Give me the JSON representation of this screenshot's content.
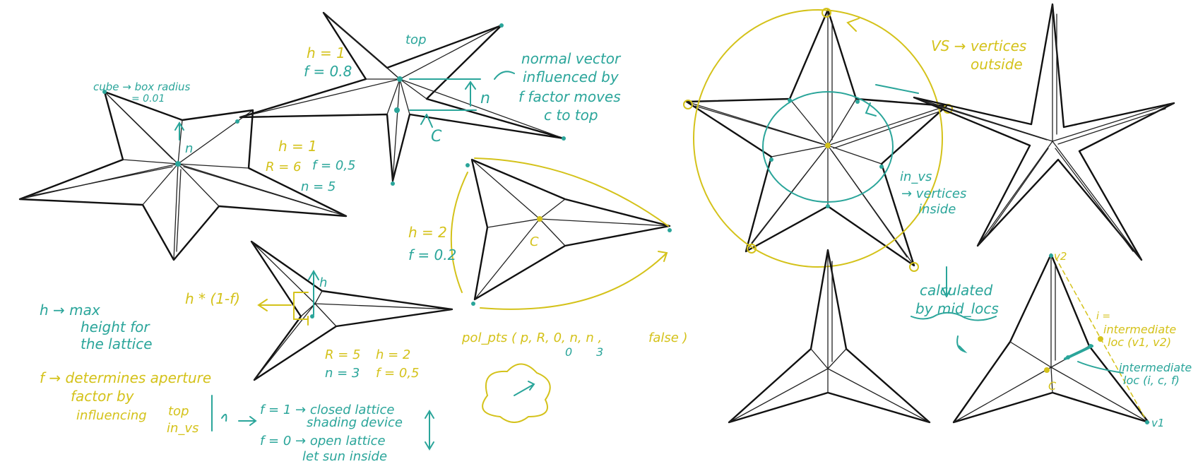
{
  "colors": {
    "ink": "#111111",
    "teal": "#2aa59a",
    "yellow": "#d4c21a"
  },
  "labels": {
    "cube": "cube → box radius",
    "cube_val": "= 0.01",
    "h1a": "h = 1",
    "f08": "f = 0.8",
    "top": "top",
    "n_big": "n",
    "c_big": "C",
    "normal1": "normal vector",
    "normal2": "influenced by",
    "normal3": "f factor moves",
    "normal4": "c to top",
    "n_star1": "n",
    "h1b": "h = 1",
    "R6": "R = 6",
    "f05a": "f = 0,5",
    "n5": "n = 5",
    "h2a": "h = 2",
    "f02": "f = 0.2",
    "c_tri": "C",
    "h_small": "h",
    "hf": "h * (1-f)",
    "R5": "R = 5",
    "h2b": "h = 2",
    "n3": "n = 3",
    "f05b": "f = 0,5",
    "pol_main": "pol_pts ( p, R, 0, n, n ,",
    "pol_false": "false )",
    "pol_0": "0",
    "pol_3": "3",
    "hmax1": "h → max",
    "hmax2": "height for",
    "hmax3": "the lattice",
    "fdet1": "f → determines aperture",
    "fdet2": "factor by",
    "fdet3": "influencing",
    "fdet_top": "top",
    "fdet_invs": "in_vs",
    "f1a": "f = 1 → closed lattice",
    "f1b": "shading device",
    "f0a": "f = 0 → open lattice",
    "f0b": "let sun inside",
    "vs1": "VS → vertices",
    "vs2": "outside",
    "invs1": "in_vs",
    "invs2": "→ vertices",
    "invs3": "inside",
    "calc1": "calculated",
    "calc2": "by mid_locs",
    "v2": "v2",
    "i_lbl": "i =",
    "inter1a": "intermediate",
    "inter1b": "loc (v1, v2)",
    "inter2a": "intermediate",
    "inter2b": "loc (i, c, f)",
    "c_br": "C",
    "v1": "v1"
  }
}
